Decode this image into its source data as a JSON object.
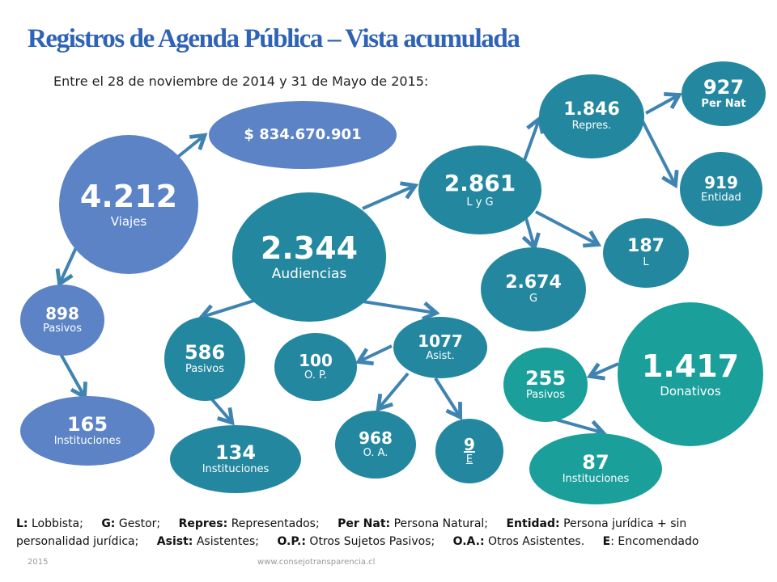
{
  "title": "Registros de Agenda Pública – Vista acumulada",
  "subtitle": "Entre el 28 de noviembre de 2014 y 31 de Mayo de 2015:",
  "nodes": {
    "money": {
      "value": "$ 834.670.901",
      "label": ""
    },
    "viajes": {
      "value": "4.212",
      "label": "Viajes"
    },
    "audiencias": {
      "value": "2.344",
      "label": "Audiencias"
    },
    "lyg": {
      "value": "2.861",
      "label": "L y G"
    },
    "represent": {
      "value": "1.846",
      "label": "Repres."
    },
    "pernat": {
      "value": "927",
      "label": "Per Nat"
    },
    "entidad": {
      "value": "919",
      "label": "Entidad"
    },
    "lobbista": {
      "value": "187",
      "label": "L"
    },
    "gestor": {
      "value": "2.674",
      "label": "G"
    },
    "viajes_pasivos": {
      "value": "898",
      "label": "Pasivos"
    },
    "viajes_inst": {
      "value": "165",
      "label": "Instituciones"
    },
    "aud_pasivos": {
      "value": "586",
      "label": "Pasivos"
    },
    "aud_inst": {
      "value": "134",
      "label": "Instituciones"
    },
    "op": {
      "value": "100",
      "label": "O. P."
    },
    "asist": {
      "value": "1077",
      "label": "Asist."
    },
    "oa": {
      "value": "968",
      "label": "O. A."
    },
    "encom": {
      "value": "9",
      "label": "E"
    },
    "donativos": {
      "value": "1.417",
      "label": "Donativos"
    },
    "don_pasivos": {
      "value": "255",
      "label": "Pasivos"
    },
    "don_inst": {
      "value": "87",
      "label": "Instituciones"
    }
  },
  "legend": [
    {
      "key": "L:",
      "text": "Lobbista;"
    },
    {
      "key": "G:",
      "text": "Gestor;"
    },
    {
      "key": "Repres:",
      "text": "Representados;"
    },
    {
      "key": "Per Nat:",
      "text": "Persona Natural;"
    },
    {
      "key": "Entidad:",
      "text": "Persona jurídica + sin personalidad jurídica;"
    },
    {
      "key": "Asist:",
      "text": "Asistentes;"
    },
    {
      "key": "O.P.:",
      "text": "Otros Sujetos Pasivos;"
    },
    {
      "key": "O.A.:",
      "text": "Otros Asistentes."
    },
    {
      "key": "E",
      "text": ": Encomendado"
    }
  ],
  "footer": {
    "year": "2015",
    "url": "www.consejotransparencia.cl"
  },
  "colors": {
    "blue": "#5b83c6",
    "teal": "#23879f",
    "green": "#1a9f9a",
    "arrow": "#3f84b1",
    "title": "#2e63b5"
  }
}
